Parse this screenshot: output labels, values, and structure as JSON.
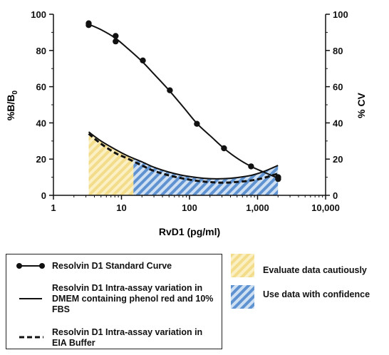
{
  "chart_data": {
    "type": "line",
    "xlabel": "RvD1 (pg/ml)",
    "ylabel_left": "%B/B0",
    "ylabel_right": "% CV",
    "x_scale": "log",
    "xlim": [
      1,
      10000
    ],
    "ylim": [
      0,
      100
    ],
    "x_ticks": [
      1,
      10,
      100,
      1000,
      10000
    ],
    "x_tick_labels": [
      "1",
      "10",
      "100",
      "1,000",
      "10,000"
    ],
    "y_ticks": [
      0,
      20,
      40,
      60,
      80,
      100
    ],
    "y_tick_labels": [
      "0",
      "20",
      "40",
      "60",
      "80",
      "100"
    ],
    "grid": false,
    "standard_curve_points": {
      "x": [
        3.3,
        3.3,
        8.2,
        8.2,
        20.6,
        51.4,
        128.6,
        321.5,
        803.8,
        2009.4,
        2009.4
      ],
      "y": [
        95,
        94,
        88,
        85,
        74.5,
        58,
        39.5,
        26,
        16,
        10,
        9
      ]
    },
    "standard_curve_fit": {
      "x": [
        3.3,
        5,
        8,
        12,
        20,
        30,
        50,
        80,
        130,
        200,
        320,
        500,
        800,
        1200,
        2000
      ],
      "y": [
        94.5,
        91.5,
        87,
        81.5,
        74,
        67,
        58,
        49,
        39.5,
        33,
        26,
        20.5,
        16,
        13,
        9.5
      ]
    },
    "series": [
      {
        "name": "Resolvin D1 Intra-assay variation in DMEM containing phenol red and 10% FBS",
        "style": "solid",
        "x": [
          3.3,
          5,
          8,
          12,
          20,
          30,
          50,
          80,
          130,
          200,
          320,
          500,
          800,
          1200,
          2000
        ],
        "y": [
          35,
          30,
          25.5,
          22,
          18.5,
          15.5,
          12.8,
          11,
          9.8,
          9.2,
          9.2,
          9.8,
          11,
          13,
          16.5
        ]
      },
      {
        "name": "Resolvin D1 Intra-assay variation in EIA Buffer",
        "style": "dashed",
        "x": [
          3.3,
          5,
          8,
          12,
          20,
          30,
          50,
          80,
          130,
          200,
          320,
          500,
          800,
          1200,
          2000
        ],
        "y": [
          34,
          28.5,
          23.5,
          20.5,
          16.5,
          13.5,
          11,
          9.3,
          8,
          7.3,
          7,
          7.4,
          8.2,
          9.5,
          12
        ]
      }
    ],
    "regions": [
      {
        "label": "Evaluate data cautiously",
        "x_from": 3.3,
        "x_to": 15,
        "color": "#f6e3a0"
      },
      {
        "label": "Use data with confidence",
        "x_from": 15,
        "x_to": 2000,
        "color": "#6f9fd6"
      }
    ],
    "legend_standard_curve": "Resolvin D1 Standard Curve",
    "legend_position": "bottom"
  }
}
